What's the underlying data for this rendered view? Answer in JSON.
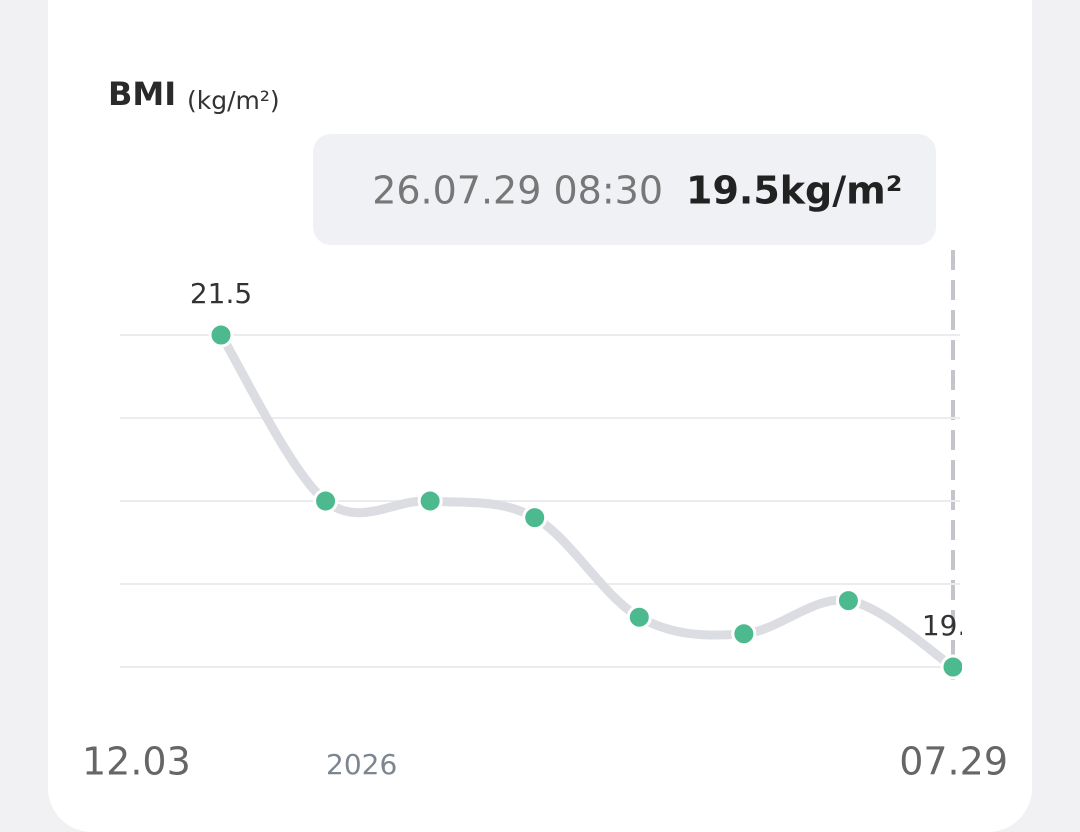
{
  "chart_data": {
    "type": "line",
    "title": "BMI",
    "unit": "(kg/m²)",
    "tooltip": {
      "time": "26.07.29 08:30",
      "value": "19.5kg/m²"
    },
    "categories": [
      null,
      null,
      null,
      null,
      null,
      null,
      null,
      null
    ],
    "values": [
      21.5,
      20.5,
      20.5,
      20.4,
      19.8,
      19.7,
      19.9,
      19.5
    ],
    "color": "#dcdde2",
    "point_color": "#4cba8e",
    "ylim": [
      19.5,
      21.5
    ],
    "yticks": [
      19.5,
      20,
      20.5,
      21,
      21.5
    ],
    "grid": true,
    "x_labels": [
      "12.03",
      "2026",
      "07.29"
    ]
  }
}
